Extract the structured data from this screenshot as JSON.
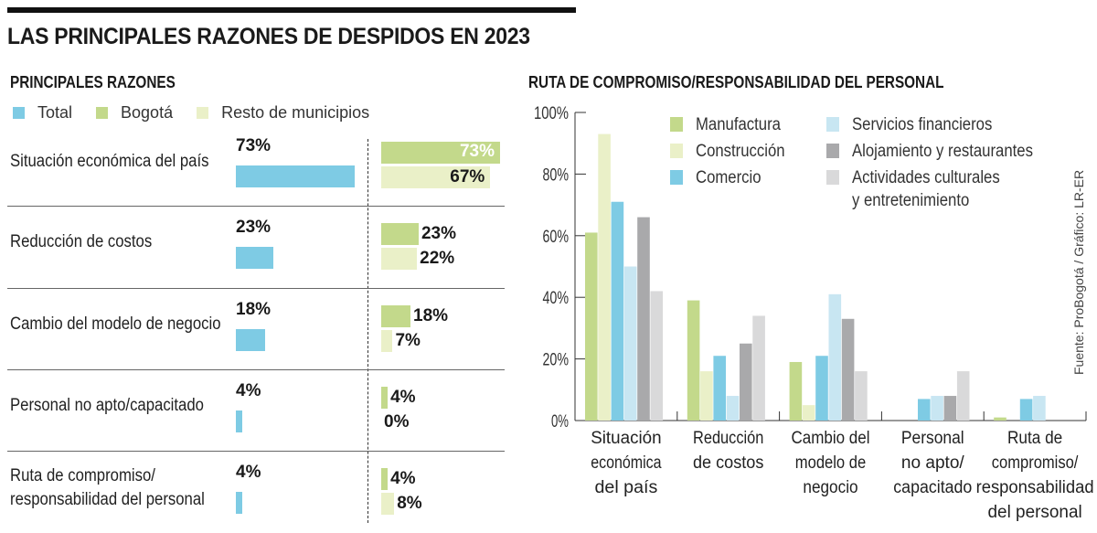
{
  "title": "LAS PRINCIPALES RAZONES DE DESPIDOS EN 2023",
  "source": "Fuente: ProBogotá / Gráfico: LR-ER",
  "colors": {
    "total": "#7ecbe4",
    "bogota": "#c3d98b",
    "resto": "#eaf0c8",
    "manufactura": "#c3d98b",
    "construccion": "#eaf0c8",
    "comercio": "#7ecbe4",
    "servicios_financieros": "#c8e6f2",
    "alojamiento": "#a9a9ab",
    "actividades_culturales": "#d9d9da"
  },
  "chart_data": [
    {
      "type": "bar",
      "title": "PRINCIPALES RAZONES",
      "orientation": "horizontal",
      "legend": [
        "Total",
        "Bogotá",
        "Resto de municipios"
      ],
      "legend_position": "top-left",
      "categories": [
        "Situación económica del país",
        "Reducción de costos",
        "Cambio del modelo de negocio",
        "Personal no apto/capacitado",
        "Ruta de compromiso/ responsabilidad del personal"
      ],
      "series": [
        {
          "name": "Total",
          "values": [
            73,
            23,
            18,
            4,
            4
          ]
        },
        {
          "name": "Bogotá",
          "values": [
            73,
            23,
            18,
            4,
            4
          ]
        },
        {
          "name": "Resto de municipios",
          "values": [
            67,
            22,
            7,
            0,
            8
          ]
        }
      ],
      "value_labels": {
        "Total": [
          "73%",
          "23%",
          "18%",
          "4%",
          "4%"
        ],
        "Bogotá": [
          "73%",
          "23%",
          "18%",
          "4%",
          "4%"
        ],
        "Resto de municipios": [
          "67%",
          "22%",
          "7%",
          "0%",
          "8%"
        ]
      },
      "unit": "%"
    },
    {
      "type": "bar",
      "title": "RUTA DE COMPROMISO/RESPONSABILIDAD DEL PERSONAL",
      "xlabel": "",
      "ylabel": "",
      "ylim": [
        0,
        100
      ],
      "yticks": [
        "0%",
        "20%",
        "40%",
        "60%",
        "80%",
        "100%"
      ],
      "grid": false,
      "legend_position": "top-right",
      "categories": [
        "Situación económica del país",
        "Reducción de costos",
        "Cambio del modelo de negocio",
        "Personal no apto/ capacitado",
        "Ruta de compromiso/ responsabilidad del personal"
      ],
      "category_label_lines": [
        [
          "Situación",
          "económica",
          "del país"
        ],
        [
          "Reducción",
          "de costos"
        ],
        [
          "Cambio del",
          "modelo de",
          "negocio"
        ],
        [
          "Personal",
          "no apto/",
          "capacitado"
        ],
        [
          "Ruta de",
          "compromiso/",
          "responsabilidad",
          "del personal"
        ]
      ],
      "series": [
        {
          "name": "Manufactura",
          "color_key": "manufactura",
          "values": [
            61,
            39,
            19,
            0,
            1
          ]
        },
        {
          "name": "Construcción",
          "color_key": "construccion",
          "values": [
            93,
            16,
            5,
            0,
            0
          ]
        },
        {
          "name": "Comercio",
          "color_key": "comercio",
          "values": [
            71,
            21,
            21,
            7,
            7
          ]
        },
        {
          "name": "Servicios financieros",
          "color_key": "servicios_financieros",
          "values": [
            50,
            8,
            41,
            8,
            8
          ]
        },
        {
          "name": "Alojamiento y restaurantes",
          "color_key": "alojamiento",
          "values": [
            66,
            25,
            33,
            8,
            0
          ]
        },
        {
          "name": "Actividades culturales y entretenimiento",
          "color_key": "actividades_culturales",
          "values": [
            42,
            34,
            16,
            16,
            0
          ]
        }
      ],
      "legend_lines": [
        [
          "Manufactura"
        ],
        [
          "Construcción"
        ],
        [
          "Comercio"
        ],
        [
          "Servicios financieros"
        ],
        [
          "Alojamiento y restaurantes"
        ],
        [
          "Actividades culturales",
          "y entretenimiento"
        ]
      ]
    }
  ]
}
